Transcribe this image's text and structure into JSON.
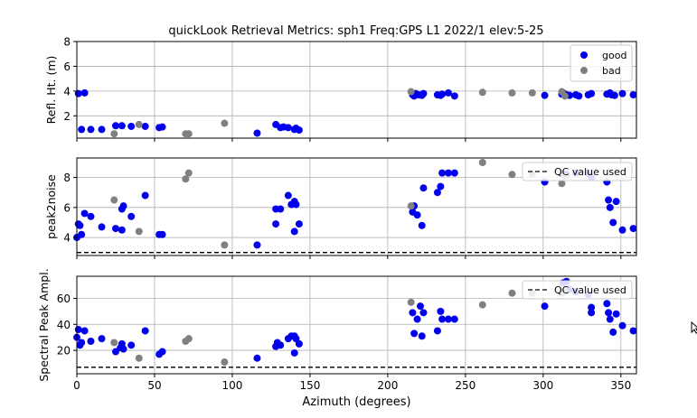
{
  "figure": {
    "title": "quickLook Retrieval Metrics: sph1 Freq:GPS L1 2022/1  elev:5-25"
  },
  "colors": {
    "good": "#0000ee",
    "bad": "#808080",
    "grid": "#b0b0b0",
    "axis": "#000000"
  },
  "legend_labels": {
    "good": "good",
    "bad": "bad",
    "qc": "QC value used"
  },
  "chart_data": [
    {
      "type": "scatter",
      "panel": "top",
      "xlabel": "",
      "ylabel": "Refl. Ht. (m)",
      "xlim": [
        0,
        360
      ],
      "ylim": [
        0.2,
        8
      ],
      "xticks": [
        0,
        50,
        100,
        150,
        200,
        250,
        300,
        350
      ],
      "yticks": [
        2,
        4,
        6,
        8
      ],
      "grid": true,
      "legend": "top-right",
      "series": [
        {
          "name": "good",
          "color": "#0000ee",
          "points": [
            [
              1,
              3.8
            ],
            [
              3,
              0.9
            ],
            [
              5,
              3.85
            ],
            [
              9,
              0.9
            ],
            [
              16,
              0.9
            ],
            [
              25,
              1.2
            ],
            [
              29,
              1.2
            ],
            [
              35,
              1.15
            ],
            [
              44,
              1.15
            ],
            [
              53,
              1.05
            ],
            [
              55,
              1.1
            ],
            [
              116,
              0.6
            ],
            [
              128,
              1.3
            ],
            [
              131,
              1.05
            ],
            [
              133,
              1.1
            ],
            [
              136,
              1.05
            ],
            [
              140,
              0.9
            ],
            [
              141,
              1.0
            ],
            [
              143,
              0.85
            ],
            [
              216,
              3.7
            ],
            [
              217,
              3.6
            ],
            [
              218,
              3.8
            ],
            [
              220,
              3.7
            ],
            [
              222,
              3.65
            ],
            [
              223,
              3.8
            ],
            [
              232,
              3.7
            ],
            [
              234,
              3.65
            ],
            [
              235,
              3.75
            ],
            [
              239,
              3.85
            ],
            [
              243,
              3.6
            ],
            [
              301,
              3.65
            ],
            [
              312,
              3.75
            ],
            [
              313,
              3.85
            ],
            [
              315,
              3.7
            ],
            [
              317,
              3.65
            ],
            [
              321,
              3.7
            ],
            [
              323,
              3.6
            ],
            [
              329,
              3.7
            ],
            [
              331,
              3.8
            ],
            [
              341,
              3.75
            ],
            [
              343,
              3.85
            ],
            [
              344,
              3.7
            ],
            [
              346,
              3.65
            ],
            [
              351,
              3.8
            ],
            [
              358,
              3.7
            ]
          ]
        },
        {
          "name": "bad",
          "color": "#808080",
          "points": [
            [
              24,
              0.55
            ],
            [
              40,
              1.3
            ],
            [
              70,
              0.55
            ],
            [
              72,
              0.55
            ],
            [
              95,
              1.4
            ],
            [
              215,
              3.95
            ],
            [
              261,
              3.9
            ],
            [
              280,
              3.85
            ],
            [
              293,
              3.85
            ],
            [
              312,
              3.95
            ],
            [
              314,
              3.6
            ]
          ]
        }
      ]
    },
    {
      "type": "scatter",
      "panel": "middle",
      "xlabel": "",
      "ylabel": "peak2noise",
      "xlim": [
        0,
        360
      ],
      "ylim": [
        2.8,
        9.3
      ],
      "xticks": [
        0,
        50,
        100,
        150,
        200,
        250,
        300,
        350
      ],
      "yticks": [
        4,
        6,
        8
      ],
      "grid": true,
      "legend": "top-right",
      "qc_line": 3.0,
      "series": [
        {
          "name": "good",
          "color": "#0000ee",
          "points": [
            [
              0,
              4.0
            ],
            [
              1,
              4.9
            ],
            [
              2,
              4.8
            ],
            [
              3,
              4.2
            ],
            [
              5,
              5.6
            ],
            [
              9,
              5.4
            ],
            [
              16,
              4.7
            ],
            [
              25,
              4.6
            ],
            [
              29,
              5.9
            ],
            [
              30,
              6.1
            ],
            [
              29,
              4.5
            ],
            [
              35,
              5.4
            ],
            [
              44,
              6.8
            ],
            [
              53,
              4.2
            ],
            [
              55,
              4.2
            ],
            [
              116,
              3.5
            ],
            [
              128,
              4.9
            ],
            [
              128,
              5.9
            ],
            [
              131,
              5.9
            ],
            [
              136,
              6.8
            ],
            [
              138,
              6.2
            ],
            [
              140,
              6.4
            ],
            [
              141,
              6.2
            ],
            [
              140,
              4.4
            ],
            [
              143,
              4.9
            ],
            [
              216,
              5.7
            ],
            [
              217,
              6.1
            ],
            [
              219,
              5.5
            ],
            [
              222,
              4.8
            ],
            [
              223,
              7.3
            ],
            [
              232,
              7.0
            ],
            [
              234,
              7.4
            ],
            [
              235,
              8.3
            ],
            [
              239,
              8.3
            ],
            [
              243,
              8.3
            ],
            [
              301,
              7.7
            ],
            [
              313,
              8.2
            ],
            [
              315,
              8.2
            ],
            [
              321,
              8.3
            ],
            [
              329,
              8.3
            ],
            [
              331,
              8.0
            ],
            [
              341,
              7.7
            ],
            [
              342,
              6.5
            ],
            [
              343,
              6.0
            ],
            [
              345,
              5.0
            ],
            [
              347,
              6.4
            ],
            [
              351,
              4.5
            ],
            [
              358,
              4.6
            ]
          ]
        },
        {
          "name": "bad",
          "color": "#808080",
          "points": [
            [
              24,
              6.5
            ],
            [
              40,
              4.4
            ],
            [
              70,
              7.9
            ],
            [
              72,
              8.3
            ],
            [
              95,
              3.5
            ],
            [
              215,
              6.1
            ],
            [
              261,
              9.0
            ],
            [
              280,
              8.2
            ],
            [
              293,
              8.2
            ],
            [
              312,
              7.6
            ],
            [
              314,
              8.1
            ]
          ]
        }
      ]
    },
    {
      "type": "scatter",
      "panel": "bottom",
      "xlabel": "Azimuth (degrees)",
      "ylabel": "Spectral Peak Ampl.",
      "xlim": [
        0,
        360
      ],
      "ylim": [
        2,
        77
      ],
      "xticks": [
        0,
        50,
        100,
        150,
        200,
        250,
        300,
        350
      ],
      "yticks": [
        20,
        40,
        60
      ],
      "grid": true,
      "legend": "top-right",
      "qc_line": 7,
      "series": [
        {
          "name": "good",
          "color": "#0000ee",
          "points": [
            [
              0,
              30
            ],
            [
              1,
              36
            ],
            [
              2,
              24
            ],
            [
              3,
              26
            ],
            [
              5,
              35
            ],
            [
              9,
              27
            ],
            [
              16,
              29
            ],
            [
              25,
              19
            ],
            [
              28,
              22
            ],
            [
              29,
              25
            ],
            [
              30,
              21
            ],
            [
              35,
              24
            ],
            [
              44,
              35
            ],
            [
              53,
              17
            ],
            [
              55,
              19
            ],
            [
              116,
              14
            ],
            [
              128,
              23
            ],
            [
              129,
              26
            ],
            [
              131,
              24
            ],
            [
              136,
              29
            ],
            [
              138,
              31
            ],
            [
              140,
              31
            ],
            [
              141,
              29
            ],
            [
              143,
              25
            ],
            [
              140,
              18
            ],
            [
              216,
              49
            ],
            [
              217,
              33
            ],
            [
              219,
              44
            ],
            [
              221,
              54
            ],
            [
              222,
              31
            ],
            [
              223,
              49
            ],
            [
              232,
              35
            ],
            [
              234,
              50
            ],
            [
              235,
              44
            ],
            [
              239,
              44
            ],
            [
              243,
              44
            ],
            [
              301,
              54
            ],
            [
              313,
              72
            ],
            [
              315,
              73
            ],
            [
              317,
              67
            ],
            [
              321,
              65
            ],
            [
              329,
              63
            ],
            [
              331,
              53
            ],
            [
              331,
              49
            ],
            [
              341,
              56
            ],
            [
              342,
              49
            ],
            [
              343,
              44
            ],
            [
              345,
              34
            ],
            [
              347,
              48
            ],
            [
              351,
              39
            ],
            [
              358,
              35
            ]
          ]
        },
        {
          "name": "bad",
          "color": "#808080",
          "points": [
            [
              24,
              26
            ],
            [
              40,
              14
            ],
            [
              70,
              27
            ],
            [
              72,
              29
            ],
            [
              95,
              11
            ],
            [
              215,
              57
            ],
            [
              261,
              55
            ],
            [
              280,
              64
            ],
            [
              293,
              64
            ],
            [
              312,
              64
            ],
            [
              314,
              65
            ]
          ]
        }
      ]
    }
  ]
}
